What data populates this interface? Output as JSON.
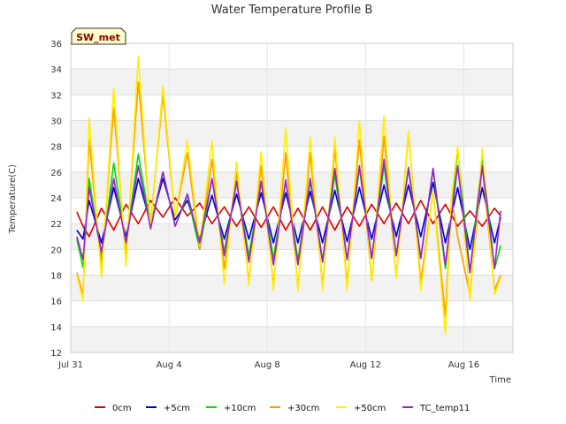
{
  "chart_data": {
    "type": "line",
    "title": "Water Temperature Profile B",
    "xlabel": "Time",
    "ylabel": "Temperature(C)",
    "station_label": "SW_met",
    "ylim": [
      12,
      36
    ],
    "xlim": [
      "2023-07-31",
      "2023-08-18"
    ],
    "yticks": [
      12,
      14,
      16,
      18,
      20,
      22,
      24,
      26,
      28,
      30,
      32,
      34,
      36
    ],
    "xticks": [
      {
        "value": "2023-07-31",
        "label": "Jul 31"
      },
      {
        "value": "2023-08-04",
        "label": "Aug 4"
      },
      {
        "value": "2023-08-08",
        "label": "Aug 8"
      },
      {
        "value": "2023-08-12",
        "label": "Aug 12"
      },
      {
        "value": "2023-08-16",
        "label": "Aug 16"
      }
    ],
    "grid": true,
    "legend_position": "bottom",
    "series": [
      {
        "name": "0cm",
        "color": "#dd0000",
        "x": [
          "2023-07-31T06:00",
          "2023-07-31T12:00",
          "2023-07-31T18:00",
          "2023-08-01T06:00",
          "2023-08-01T18:00",
          "2023-08-02T06:00",
          "2023-08-02T18:00",
          "2023-08-03T06:00",
          "2023-08-03T18:00",
          "2023-08-04T06:00",
          "2023-08-04T18:00",
          "2023-08-05T06:00",
          "2023-08-05T18:00",
          "2023-08-06T06:00",
          "2023-08-06T18:00",
          "2023-08-07T06:00",
          "2023-08-07T18:00",
          "2023-08-08T06:00",
          "2023-08-08T18:00",
          "2023-08-09T06:00",
          "2023-08-09T18:00",
          "2023-08-10T06:00",
          "2023-08-10T18:00",
          "2023-08-11T06:00",
          "2023-08-11T18:00",
          "2023-08-12T06:00",
          "2023-08-12T18:00",
          "2023-08-13T06:00",
          "2023-08-13T18:00",
          "2023-08-14T06:00",
          "2023-08-14T18:00",
          "2023-08-15T06:00",
          "2023-08-15T18:00",
          "2023-08-16T06:00",
          "2023-08-16T18:00",
          "2023-08-17T06:00",
          "2023-08-17T12:00"
        ],
        "y": [
          22.9,
          21.8,
          21.0,
          23.2,
          21.5,
          23.5,
          22.0,
          23.8,
          22.5,
          24.0,
          22.6,
          23.6,
          22.0,
          23.3,
          21.8,
          23.3,
          21.7,
          23.3,
          21.5,
          23.2,
          21.5,
          23.3,
          21.5,
          23.3,
          21.8,
          23.5,
          22.0,
          23.6,
          22.0,
          23.8,
          22.0,
          23.5,
          21.8,
          23.0,
          21.8,
          23.2,
          22.6
        ]
      },
      {
        "name": "+5cm",
        "color": "#0000cc",
        "x": [
          "2023-07-31T06:00",
          "2023-07-31T12:00",
          "2023-07-31T18:00",
          "2023-08-01T06:00",
          "2023-08-01T18:00",
          "2023-08-02T06:00",
          "2023-08-02T18:00",
          "2023-08-03T06:00",
          "2023-08-03T18:00",
          "2023-08-04T06:00",
          "2023-08-04T18:00",
          "2023-08-05T06:00",
          "2023-08-05T18:00",
          "2023-08-06T06:00",
          "2023-08-06T18:00",
          "2023-08-07T06:00",
          "2023-08-07T18:00",
          "2023-08-08T06:00",
          "2023-08-08T18:00",
          "2023-08-09T06:00",
          "2023-08-09T18:00",
          "2023-08-10T06:00",
          "2023-08-10T18:00",
          "2023-08-11T06:00",
          "2023-08-11T18:00",
          "2023-08-12T06:00",
          "2023-08-12T18:00",
          "2023-08-13T06:00",
          "2023-08-13T18:00",
          "2023-08-14T06:00",
          "2023-08-14T18:00",
          "2023-08-15T06:00",
          "2023-08-15T18:00",
          "2023-08-16T06:00",
          "2023-08-16T18:00",
          "2023-08-17T06:00",
          "2023-08-17T12:00"
        ],
        "y": [
          21.5,
          20.8,
          23.8,
          20.5,
          24.8,
          21.0,
          25.5,
          22.0,
          25.5,
          22.3,
          23.8,
          20.8,
          24.2,
          20.8,
          24.3,
          20.8,
          24.4,
          20.5,
          24.4,
          20.5,
          24.5,
          20.5,
          24.6,
          20.6,
          24.8,
          20.8,
          25.0,
          21.0,
          25.0,
          21.0,
          25.2,
          20.5,
          24.8,
          20.0,
          24.8,
          20.5,
          22.5
        ]
      },
      {
        "name": "+10cm",
        "color": "#00dd00",
        "x": [
          "2023-07-31T06:00",
          "2023-07-31T12:00",
          "2023-07-31T18:00",
          "2023-08-01T06:00",
          "2023-08-01T18:00",
          "2023-08-02T06:00",
          "2023-08-02T18:00",
          "2023-08-03T06:00",
          "2023-08-03T18:00",
          "2023-08-04T06:00",
          "2023-08-04T18:00",
          "2023-08-05T06:00",
          "2023-08-05T18:00",
          "2023-08-06T06:00",
          "2023-08-06T18:00",
          "2023-08-07T06:00",
          "2023-08-07T18:00",
          "2023-08-08T06:00",
          "2023-08-08T18:00",
          "2023-08-09T06:00",
          "2023-08-09T18:00",
          "2023-08-10T06:00",
          "2023-08-10T18:00",
          "2023-08-11T06:00",
          "2023-08-11T18:00",
          "2023-08-12T06:00",
          "2023-08-12T18:00",
          "2023-08-13T06:00",
          "2023-08-13T18:00",
          "2023-08-14T06:00",
          "2023-08-14T18:00",
          "2023-08-15T06:00",
          "2023-08-15T18:00",
          "2023-08-16T06:00",
          "2023-08-16T18:00",
          "2023-08-17T06:00",
          "2023-08-17T12:00"
        ],
        "y": [
          20.8,
          18.6,
          25.5,
          19.3,
          26.7,
          20.5,
          27.4,
          21.8,
          26.0,
          21.8,
          24.2,
          20.0,
          25.5,
          19.8,
          25.2,
          19.5,
          25.2,
          19.3,
          25.3,
          19.2,
          25.3,
          19.2,
          25.8,
          19.2,
          26.3,
          19.3,
          26.5,
          19.5,
          26.4,
          19.3,
          26.2,
          18.5,
          27.8,
          18.2,
          27.2,
          18.5,
          20.3
        ]
      },
      {
        "name": "+30cm",
        "color": "#ff9900",
        "x": [
          "2023-07-31T06:00",
          "2023-07-31T12:00",
          "2023-07-31T18:00",
          "2023-08-01T06:00",
          "2023-08-01T18:00",
          "2023-08-02T06:00",
          "2023-08-02T18:00",
          "2023-08-03T06:00",
          "2023-08-03T18:00",
          "2023-08-04T06:00",
          "2023-08-04T18:00",
          "2023-08-05T06:00",
          "2023-08-05T18:00",
          "2023-08-06T06:00",
          "2023-08-06T18:00",
          "2023-08-07T06:00",
          "2023-08-07T18:00",
          "2023-08-08T06:00",
          "2023-08-08T18:00",
          "2023-08-09T06:00",
          "2023-08-09T18:00",
          "2023-08-10T06:00",
          "2023-08-10T18:00",
          "2023-08-11T06:00",
          "2023-08-11T18:00",
          "2023-08-12T06:00",
          "2023-08-12T18:00",
          "2023-08-13T06:00",
          "2023-08-13T18:00",
          "2023-08-14T06:00",
          "2023-08-14T18:00",
          "2023-08-15T06:00",
          "2023-08-15T12:00",
          "2023-08-15T18:00",
          "2023-08-16T06:00",
          "2023-08-16T18:00",
          "2023-08-17T06:00",
          "2023-08-17T12:00"
        ],
        "y": [
          18.2,
          16.5,
          28.5,
          18.5,
          31.0,
          19.5,
          33.0,
          22.0,
          32.0,
          22.5,
          27.5,
          20.0,
          27.0,
          18.5,
          26.0,
          17.5,
          26.5,
          17.2,
          27.5,
          17.0,
          27.5,
          17.2,
          27.8,
          17.3,
          28.5,
          17.5,
          28.8,
          17.8,
          29.0,
          17.5,
          24.5,
          14.8,
          24.0,
          21.0,
          16.5,
          26.5,
          16.8,
          18.0
        ]
      },
      {
        "name": "+50cm",
        "color": "#ffee00",
        "x": [
          "2023-07-31T06:00",
          "2023-07-31T12:00",
          "2023-07-31T18:00",
          "2023-08-01T06:00",
          "2023-08-01T18:00",
          "2023-08-02T06:00",
          "2023-08-02T18:00",
          "2023-08-03T06:00",
          "2023-08-03T18:00",
          "2023-08-04T06:00",
          "2023-08-04T18:00",
          "2023-08-05T06:00",
          "2023-08-05T18:00",
          "2023-08-06T06:00",
          "2023-08-06T18:00",
          "2023-08-07T06:00",
          "2023-08-07T18:00",
          "2023-08-08T06:00",
          "2023-08-08T18:00",
          "2023-08-09T06:00",
          "2023-08-09T18:00",
          "2023-08-10T06:00",
          "2023-08-10T18:00",
          "2023-08-11T06:00",
          "2023-08-11T18:00",
          "2023-08-12T06:00",
          "2023-08-12T18:00",
          "2023-08-13T06:00",
          "2023-08-13T18:00",
          "2023-08-14T06:00",
          "2023-08-14T18:00",
          "2023-08-15T06:00",
          "2023-08-15T12:00",
          "2023-08-15T18:00",
          "2023-08-16T06:00",
          "2023-08-16T18:00",
          "2023-08-17T06:00",
          "2023-08-17T12:00"
        ],
        "y": [
          18.0,
          16.0,
          30.2,
          17.8,
          32.5,
          18.7,
          35.0,
          21.5,
          32.7,
          22.5,
          28.4,
          20.3,
          28.4,
          17.3,
          26.8,
          17.2,
          27.6,
          16.8,
          29.4,
          16.8,
          28.7,
          16.8,
          28.7,
          16.8,
          30.0,
          17.5,
          30.4,
          17.8,
          29.2,
          16.8,
          24.5,
          13.4,
          24.0,
          28.0,
          16.0,
          27.8,
          16.5,
          17.8
        ]
      },
      {
        "name": "TC_temp11",
        "color": "#9922cc",
        "x": [
          "2023-07-31T06:00",
          "2023-07-31T12:00",
          "2023-07-31T18:00",
          "2023-08-01T06:00",
          "2023-08-01T18:00",
          "2023-08-02T06:00",
          "2023-08-02T18:00",
          "2023-08-03T06:00",
          "2023-08-03T18:00",
          "2023-08-04T06:00",
          "2023-08-04T18:00",
          "2023-08-05T06:00",
          "2023-08-05T18:00",
          "2023-08-06T06:00",
          "2023-08-06T18:00",
          "2023-08-07T06:00",
          "2023-08-07T18:00",
          "2023-08-08T06:00",
          "2023-08-08T18:00",
          "2023-08-09T06:00",
          "2023-08-09T18:00",
          "2023-08-10T06:00",
          "2023-08-10T18:00",
          "2023-08-11T06:00",
          "2023-08-11T18:00",
          "2023-08-12T06:00",
          "2023-08-12T18:00",
          "2023-08-13T06:00",
          "2023-08-13T18:00",
          "2023-08-14T06:00",
          "2023-08-14T18:00",
          "2023-08-15T06:00",
          "2023-08-15T18:00",
          "2023-08-16T06:00",
          "2023-08-16T18:00",
          "2023-08-17T06:00",
          "2023-08-17T12:00"
        ],
        "y": [
          21.0,
          19.2,
          24.8,
          19.8,
          25.5,
          20.5,
          26.5,
          21.6,
          26.0,
          21.8,
          24.3,
          20.5,
          25.5,
          19.5,
          25.3,
          19.0,
          25.3,
          18.8,
          25.4,
          18.8,
          25.5,
          19.0,
          26.3,
          19.2,
          26.5,
          19.3,
          27.0,
          19.5,
          26.3,
          19.3,
          26.3,
          18.8,
          26.5,
          18.2,
          26.5,
          18.5,
          23.0
        ]
      }
    ]
  }
}
